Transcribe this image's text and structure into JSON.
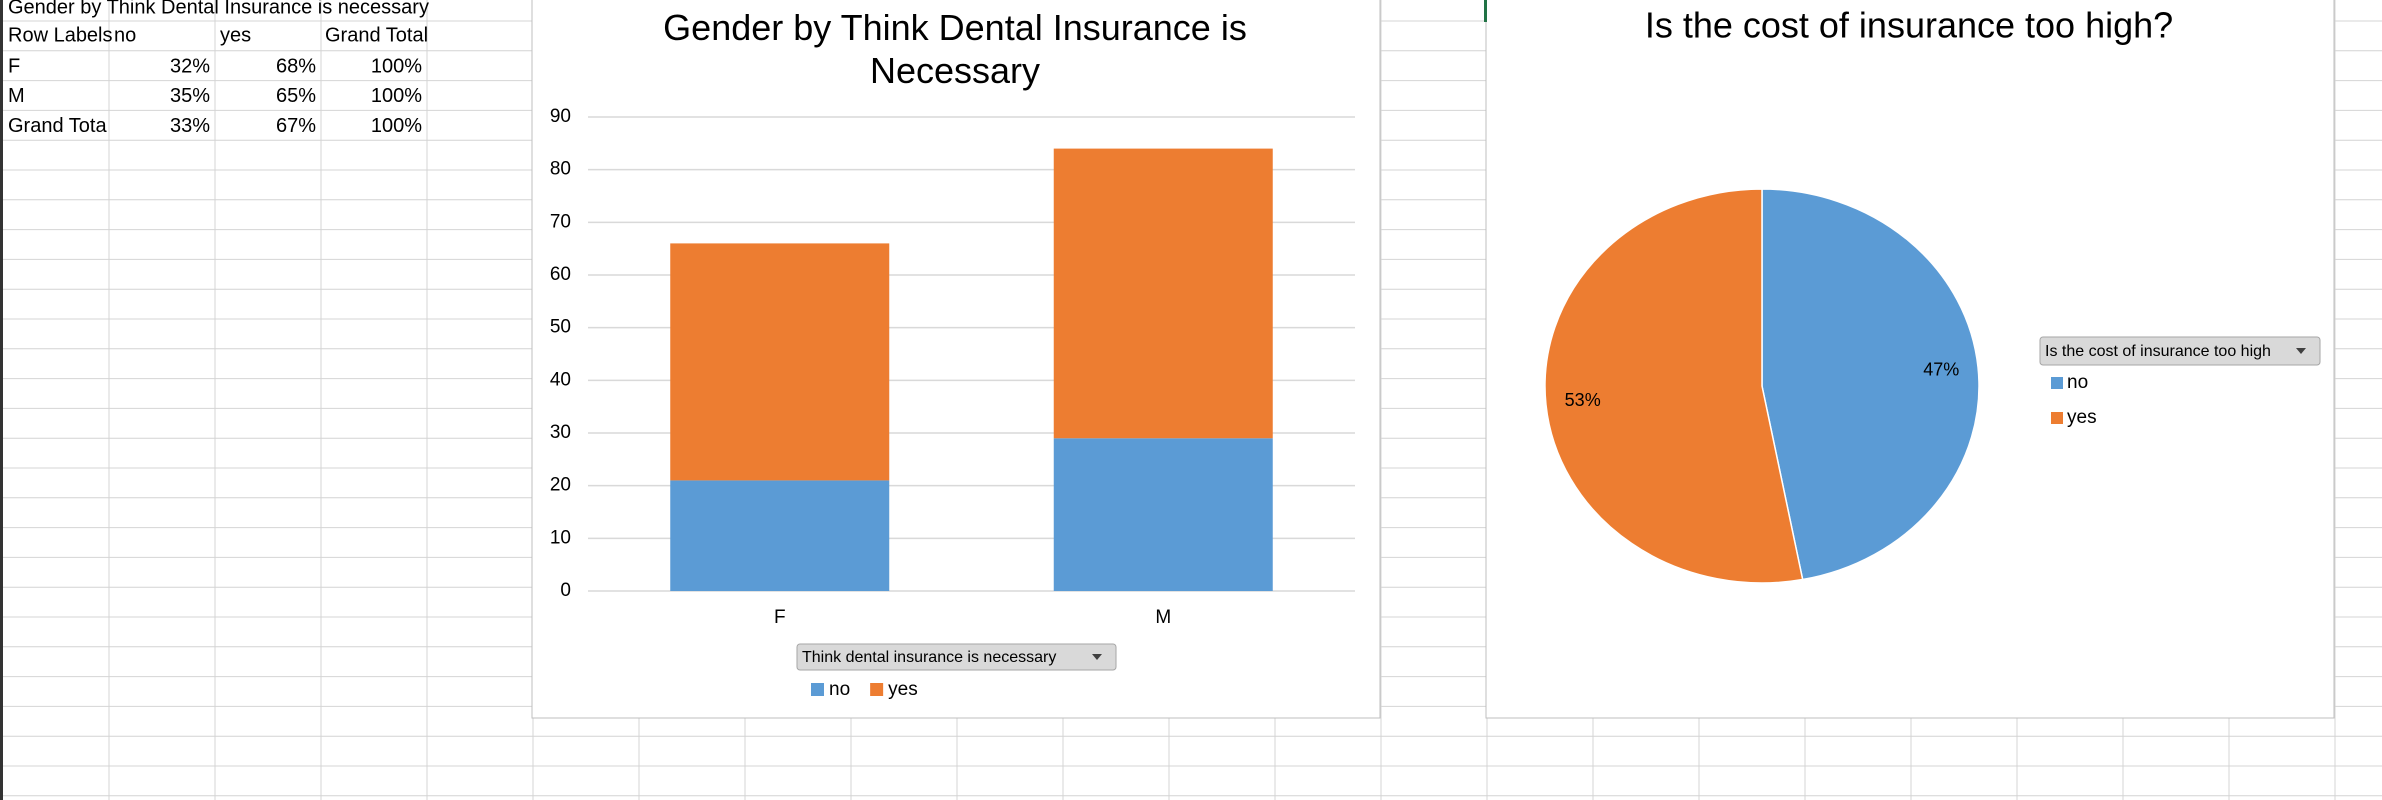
{
  "table": {
    "title": "Gender by Think Dental Insurance is necessary",
    "header": [
      "Row Labels",
      "no",
      "yes",
      "Grand Total"
    ],
    "rows": [
      [
        "F",
        "32%",
        "68%",
        "100%"
      ],
      [
        "M",
        "35%",
        "65%",
        "100%"
      ],
      [
        "Grand Tota",
        "33%",
        "67%",
        "100%"
      ]
    ]
  },
  "chart_data": [
    {
      "type": "bar",
      "stacked": true,
      "title": "Gender by Think Dental Insurance is Necessary",
      "categories": [
        "F",
        "M"
      ],
      "series": [
        {
          "name": "no",
          "color": "#5b9bd5",
          "values": [
            21,
            29
          ]
        },
        {
          "name": "yes",
          "color": "#ed7d31",
          "values": [
            45,
            55
          ]
        }
      ],
      "ylim": [
        0,
        90
      ],
      "yticks": [
        0,
        10,
        20,
        30,
        40,
        50,
        60,
        70,
        80,
        90
      ],
      "grid": true,
      "legend_title": "Think dental insurance is necessary",
      "legend": "bottom"
    },
    {
      "type": "pie",
      "title": "Is the cost of insurance too high?",
      "categories": [
        "no",
        "yes"
      ],
      "values": [
        47,
        53
      ],
      "value_labels": [
        "47%",
        "53%"
      ],
      "colors": [
        "#5b9bd5",
        "#ed7d31"
      ],
      "legend_title": "Is the cost of insurance too high",
      "legend": "right"
    }
  ]
}
